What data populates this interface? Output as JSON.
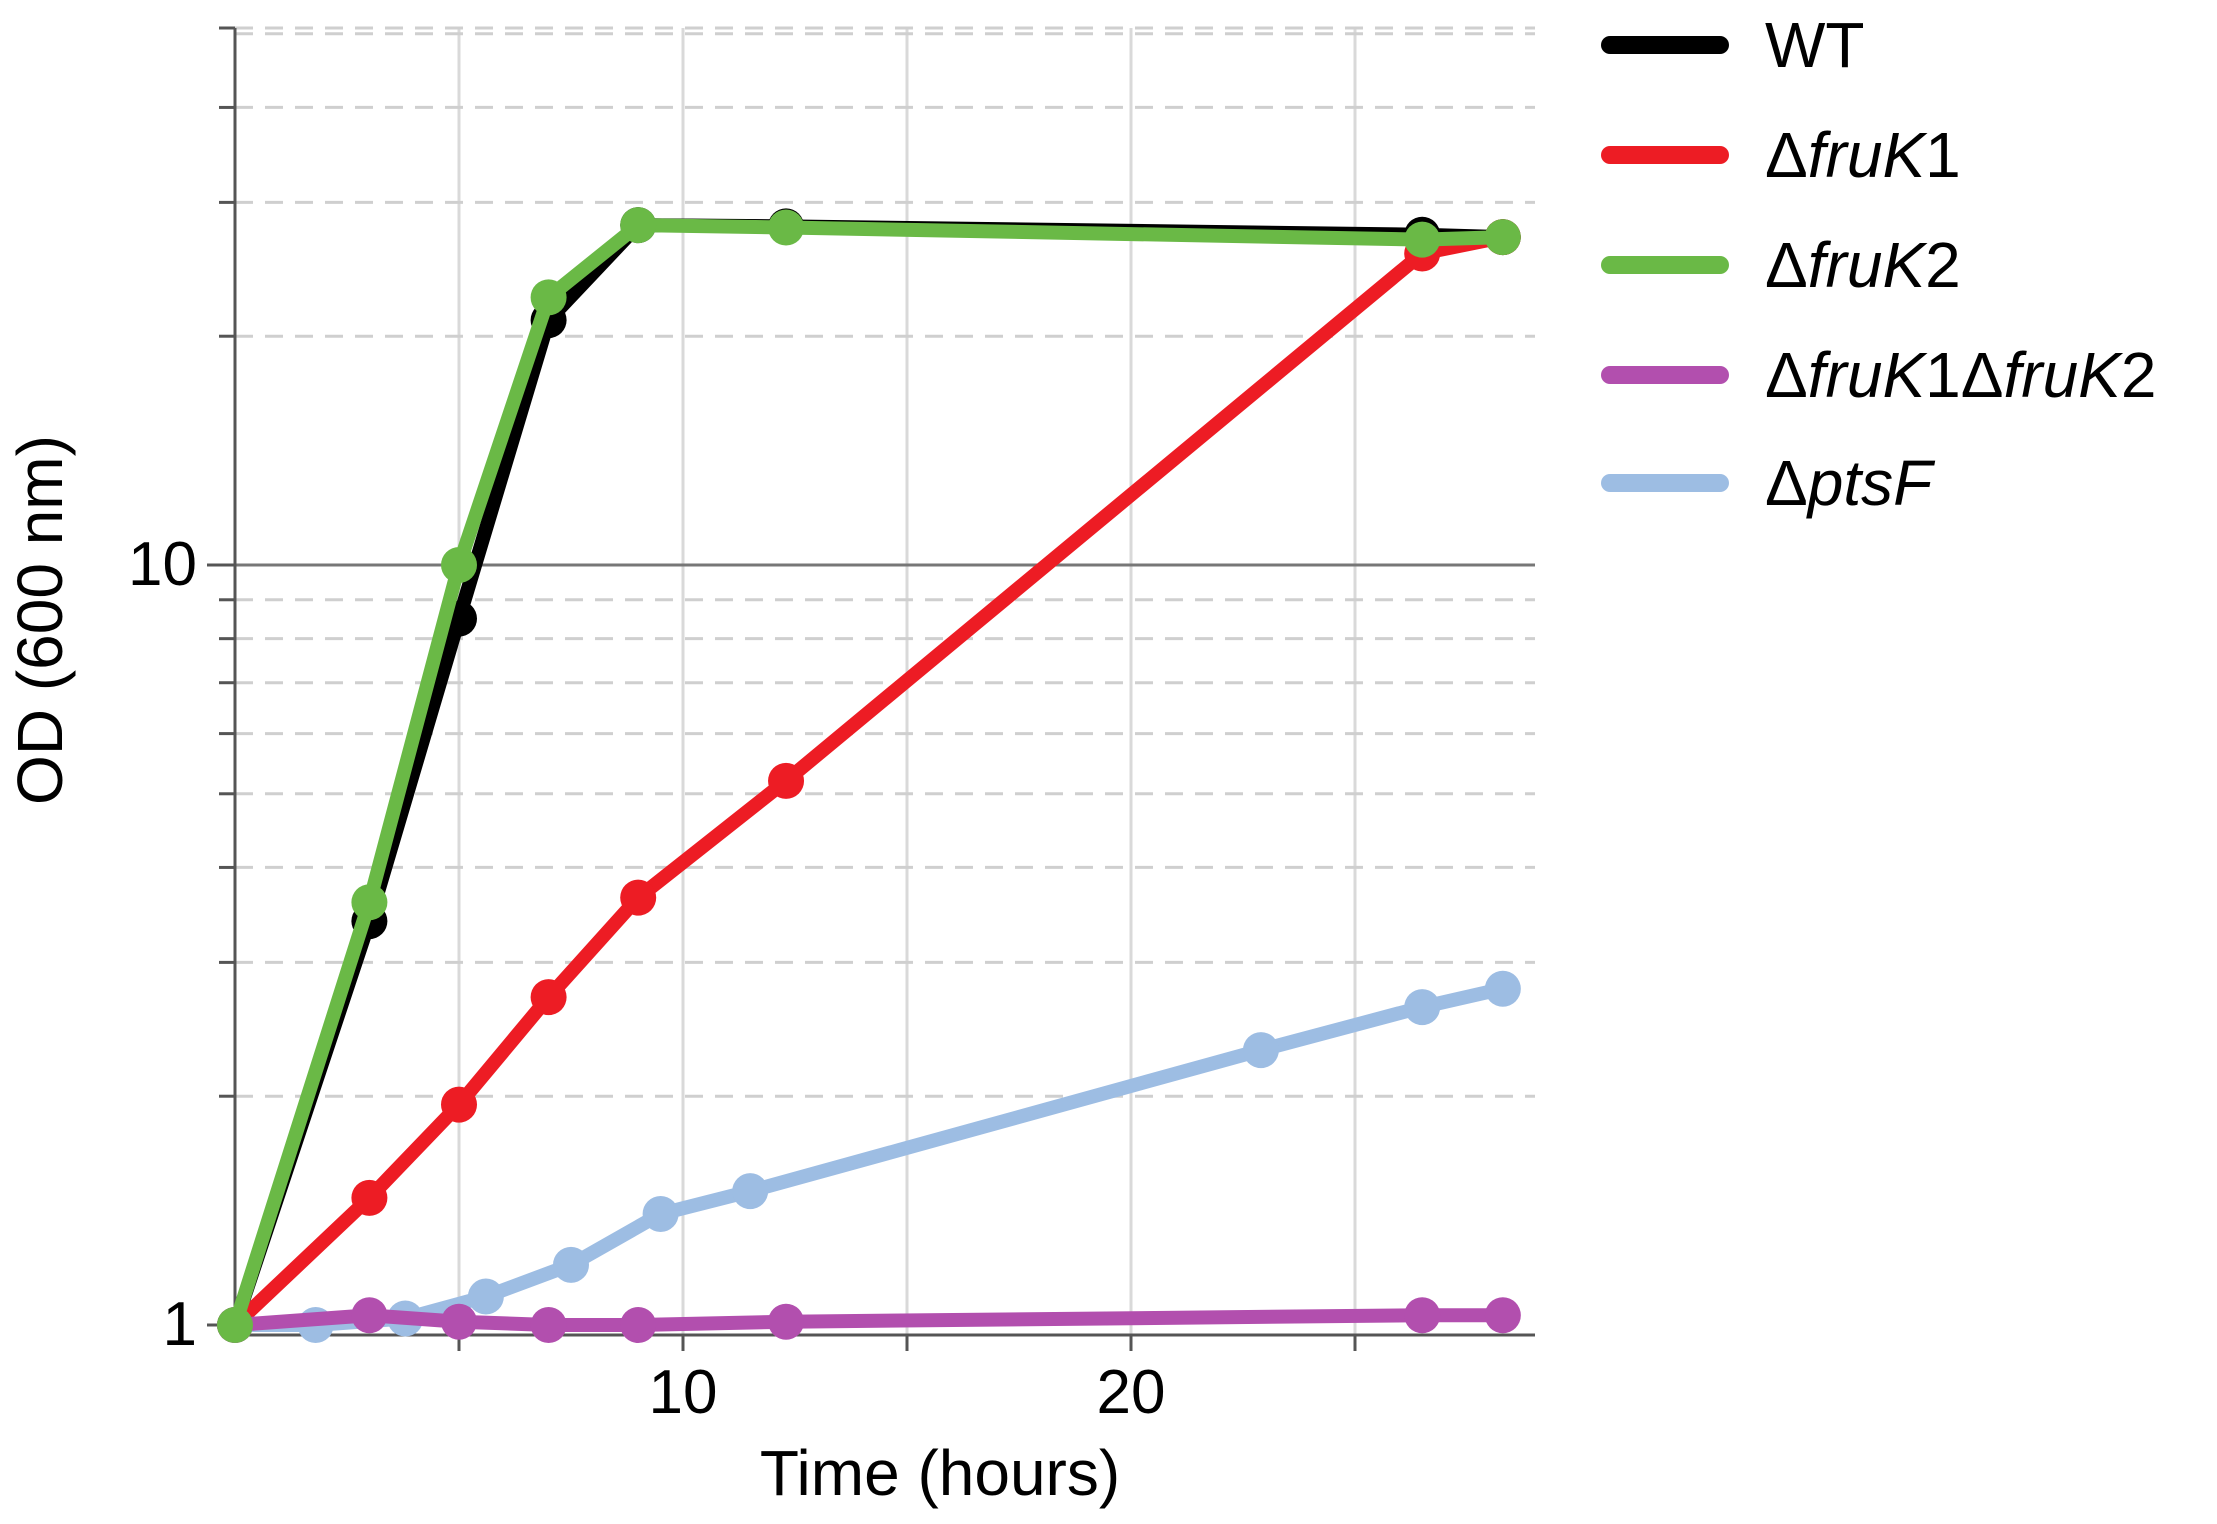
{
  "chart_data": {
    "type": "line",
    "title": "",
    "xlabel": "Time (hours)",
    "ylabel": "OD (600 nm)",
    "x_scale": "linear",
    "y_scale": "log",
    "xlim": [
      0,
      28.5
    ],
    "ylim": [
      0.95,
      40
    ],
    "x_ticks": [
      10,
      20
    ],
    "x_tick_labels": [
      "10",
      "20"
    ],
    "y_ticks": [
      1,
      10
    ],
    "y_tick_labels": [
      "1",
      "10"
    ],
    "grid": true,
    "legend_position": "right",
    "series": [
      {
        "name": "WT",
        "legend": {
          "prefix": "",
          "italic": "",
          "suffix": "WT"
        },
        "color": "#000000",
        "x": [
          0,
          3,
          5,
          7,
          9,
          12.3,
          26.5,
          28.3
        ],
        "y": [
          1,
          3.4,
          8.5,
          21,
          28,
          27.9,
          27.2,
          27
        ]
      },
      {
        "name": "ΔfruK1",
        "legend": {
          "prefix": "Δ",
          "italic": "fruK",
          "suffix": "1"
        },
        "color": "#ed1c24",
        "x": [
          0,
          3,
          5,
          7,
          9,
          12.3,
          26.5,
          28.3
        ],
        "y": [
          1,
          1.47,
          1.95,
          2.7,
          3.65,
          5.2,
          25.7,
          27
        ]
      },
      {
        "name": "ΔfruK2",
        "legend": {
          "prefix": "Δ",
          "italic": "fruK",
          "suffix": "2"
        },
        "color": "#6ab946",
        "x": [
          0,
          3,
          5,
          7,
          9,
          12.3,
          26.5,
          28.3
        ],
        "y": [
          1,
          3.6,
          10,
          22.5,
          28,
          27.8,
          26.8,
          27
        ]
      },
      {
        "name": "ΔfruK1ΔfruK2",
        "legend": {
          "prefix": "Δ",
          "italic": "fruK",
          "suffix": "1",
          "prefix2": "Δ",
          "italic2": "fruK",
          "suffix2": "2"
        },
        "color": "#b24fae",
        "x": [
          0,
          3,
          5,
          7,
          9,
          12.3,
          26.5,
          28.3
        ],
        "y": [
          1,
          1.03,
          1.01,
          1.0,
          1.0,
          1.01,
          1.03,
          1.03
        ]
      },
      {
        "name": "ΔptsF",
        "legend": {
          "prefix": "Δ",
          "italic": "ptsF",
          "suffix": ""
        },
        "color": "#9dbde3",
        "x": [
          0,
          1.8,
          3.8,
          5.6,
          7.5,
          9.5,
          11.5,
          22.9,
          26.5,
          28.3
        ],
        "y": [
          1,
          1.0,
          1.02,
          1.09,
          1.2,
          1.4,
          1.5,
          2.3,
          2.62,
          2.77
        ]
      }
    ]
  }
}
